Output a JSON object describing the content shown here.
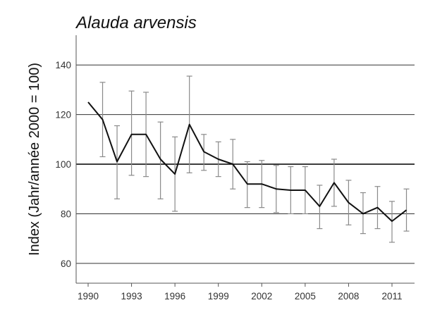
{
  "chart_data": {
    "type": "line",
    "title": "Alauda arvensis",
    "ylabel": "Index (Jahr/année 2000 = 100)",
    "xlabel": "",
    "xlim": [
      1990,
      2012.3
    ],
    "ylim": [
      52,
      152
    ],
    "y_ticks": [
      60,
      80,
      100,
      120,
      140
    ],
    "x_ticks": [
      1990,
      1993,
      1996,
      1999,
      2002,
      2005,
      2008,
      2011
    ],
    "reference_line": 100,
    "grid": "horizontal",
    "series": [
      {
        "x": [
          1990,
          1991,
          1992,
          1993,
          1994,
          1995,
          1996,
          1997,
          1998,
          1999,
          2000,
          2001,
          2002,
          2003,
          2004,
          2005,
          2006,
          2007,
          2008,
          2009,
          2010,
          2011,
          2012
        ],
        "values": [
          125,
          118,
          101,
          112,
          112,
          102,
          96,
          116,
          105,
          102,
          100,
          92,
          92,
          90,
          89.5,
          89.5,
          83,
          92.5,
          84.5,
          80,
          82.5,
          77,
          81.5
        ],
        "lower": [
          null,
          103,
          86,
          95.5,
          95,
          86,
          81,
          96.5,
          97.5,
          95,
          90,
          82.5,
          82.5,
          80.5,
          80,
          80,
          74,
          83,
          75.5,
          72,
          74,
          68.5,
          73
        ],
        "upper": [
          null,
          133,
          115.5,
          129.5,
          129,
          117,
          111,
          135.5,
          112,
          109,
          110,
          101,
          101.5,
          99.5,
          99,
          99,
          91.5,
          102,
          93.5,
          88.5,
          91,
          85,
          90
        ]
      }
    ]
  }
}
